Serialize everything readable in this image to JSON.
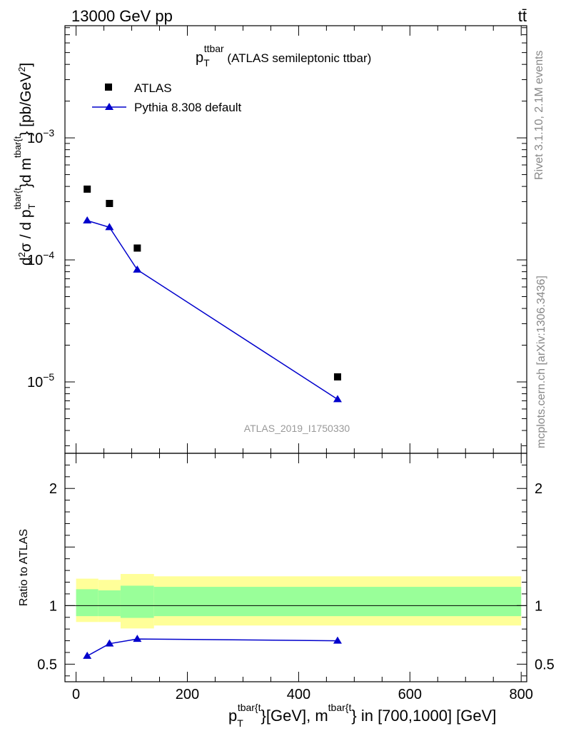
{
  "header": {
    "energy_label": "13000 GeV pp",
    "process_label": "tt̄"
  },
  "side_labels": {
    "rivet": "Rivet 3.1.10,  2.1M events",
    "source": "mcplots.cern.ch [arXiv:1306.3436]"
  },
  "chart_data": [
    {
      "type": "scatter",
      "title_main": "p",
      "title_sub": "T",
      "title_sup": "ttbar",
      "title_rest": " (ATLAS semileptonic ttbar)",
      "watermark": "ATLAS_2019_I1750330",
      "ylabel": "d²σ / d p_T^{tbar{t}}d m^{tbar{t}} [pb/GeV²]",
      "ylabel_parts": {
        "a": "d",
        "a_sup": "2",
        "b": "σ / d p",
        "b_sub": "T",
        "b_sup": "tbar{t",
        "c": "}d m",
        "c_sup": "tbar{t",
        "d": "} [pb/GeV",
        "d_sup": "2",
        "e": "]"
      },
      "yscale": "log",
      "xlim": [
        -20,
        810
      ],
      "ylim": [
        2.6e-06,
        0.0083
      ],
      "ytick_labels": [
        {
          "value": 0.001,
          "base": "10",
          "exp": "−3"
        },
        {
          "value": 0.0001,
          "base": "10",
          "exp": "−4"
        },
        {
          "value": 1e-05,
          "base": "10",
          "exp": "−5"
        }
      ],
      "legend_position": "top-left",
      "series": [
        {
          "name": "ATLAS",
          "marker": "square",
          "color": "#000000",
          "x": [
            20,
            60,
            110,
            470
          ],
          "y": [
            0.00038,
            0.00029,
            0.000125,
            1.1e-05
          ]
        },
        {
          "name": "Pythia 8.308 default",
          "marker": "triangle",
          "color": "#0000cc",
          "x": [
            20,
            60,
            110,
            470
          ],
          "y": [
            0.00021,
            0.000185,
            8.3e-05,
            7.2e-06
          ]
        }
      ]
    },
    {
      "type": "line",
      "ylabel": "Ratio to ATLAS",
      "xlabel": "p_T^{tbar{t}}[GeV], m^{tbar{t}} in [700,1000] [GeV]",
      "xlabel_parts": {
        "a": "p",
        "a_sub": "T",
        "a_sup": "tbar{t",
        "b": "}[GeV], m",
        "b_sup": "tbar{t",
        "c": "} in [700,1000] [GeV]"
      },
      "xlim": [
        -20,
        810
      ],
      "ylim": [
        0.35,
        2.3
      ],
      "xticks": [
        0,
        200,
        400,
        600,
        800
      ],
      "yticks": [
        0.5,
        1,
        2
      ],
      "bands": [
        {
          "x0": 0,
          "x1": 40,
          "inner": [
            0.91,
            1.14
          ],
          "outer": [
            0.86,
            1.23
          ]
        },
        {
          "x0": 40,
          "x1": 80,
          "inner": [
            0.91,
            1.13
          ],
          "outer": [
            0.86,
            1.22
          ]
        },
        {
          "x0": 80,
          "x1": 140,
          "inner": [
            0.895,
            1.17
          ],
          "outer": [
            0.805,
            1.27
          ]
        },
        {
          "x0": 140,
          "x1": 800,
          "inner": [
            0.91,
            1.16
          ],
          "outer": [
            0.83,
            1.25
          ]
        }
      ],
      "band_colors": {
        "inner": "#99ff99",
        "outer": "#ffff99"
      },
      "series": [
        {
          "name": "Pythia 8.308 default",
          "color": "#0000cc",
          "x": [
            20,
            60,
            110,
            470
          ],
          "y": [
            0.57,
            0.675,
            0.715,
            0.7
          ]
        }
      ]
    }
  ]
}
